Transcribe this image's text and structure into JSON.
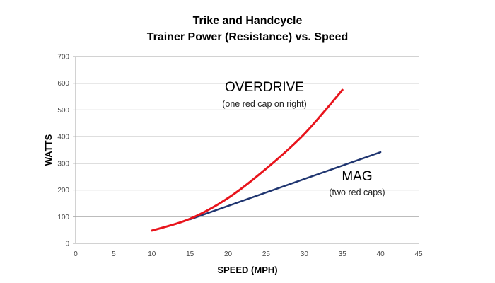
{
  "chart_data": {
    "type": "line",
    "title": "Trike and Handcycle",
    "subtitle": "Trainer Power (Resistance) vs. Speed",
    "xlabel": "SPEED (MPH)",
    "ylabel": "WATTS",
    "xlim": [
      0,
      45
    ],
    "ylim": [
      0,
      700
    ],
    "x_ticks": [
      "0",
      "5",
      "10",
      "15",
      "20",
      "25",
      "30",
      "35",
      "40",
      "45"
    ],
    "y_ticks": [
      "0",
      "100",
      "200",
      "300",
      "400",
      "500",
      "600",
      "700"
    ],
    "grid": "horizontal",
    "series": [
      {
        "name": "OVERDRIVE",
        "note": "(one red cap on right)",
        "color": "#e8141c",
        "x": [
          10,
          15,
          20,
          25,
          30,
          35
        ],
        "y": [
          48,
          92,
          170,
          280,
          410,
          575
        ]
      },
      {
        "name": "MAG",
        "note": "(two red caps)",
        "color": "#1f3570",
        "x": [
          15,
          40
        ],
        "y": [
          90,
          342
        ]
      }
    ]
  }
}
